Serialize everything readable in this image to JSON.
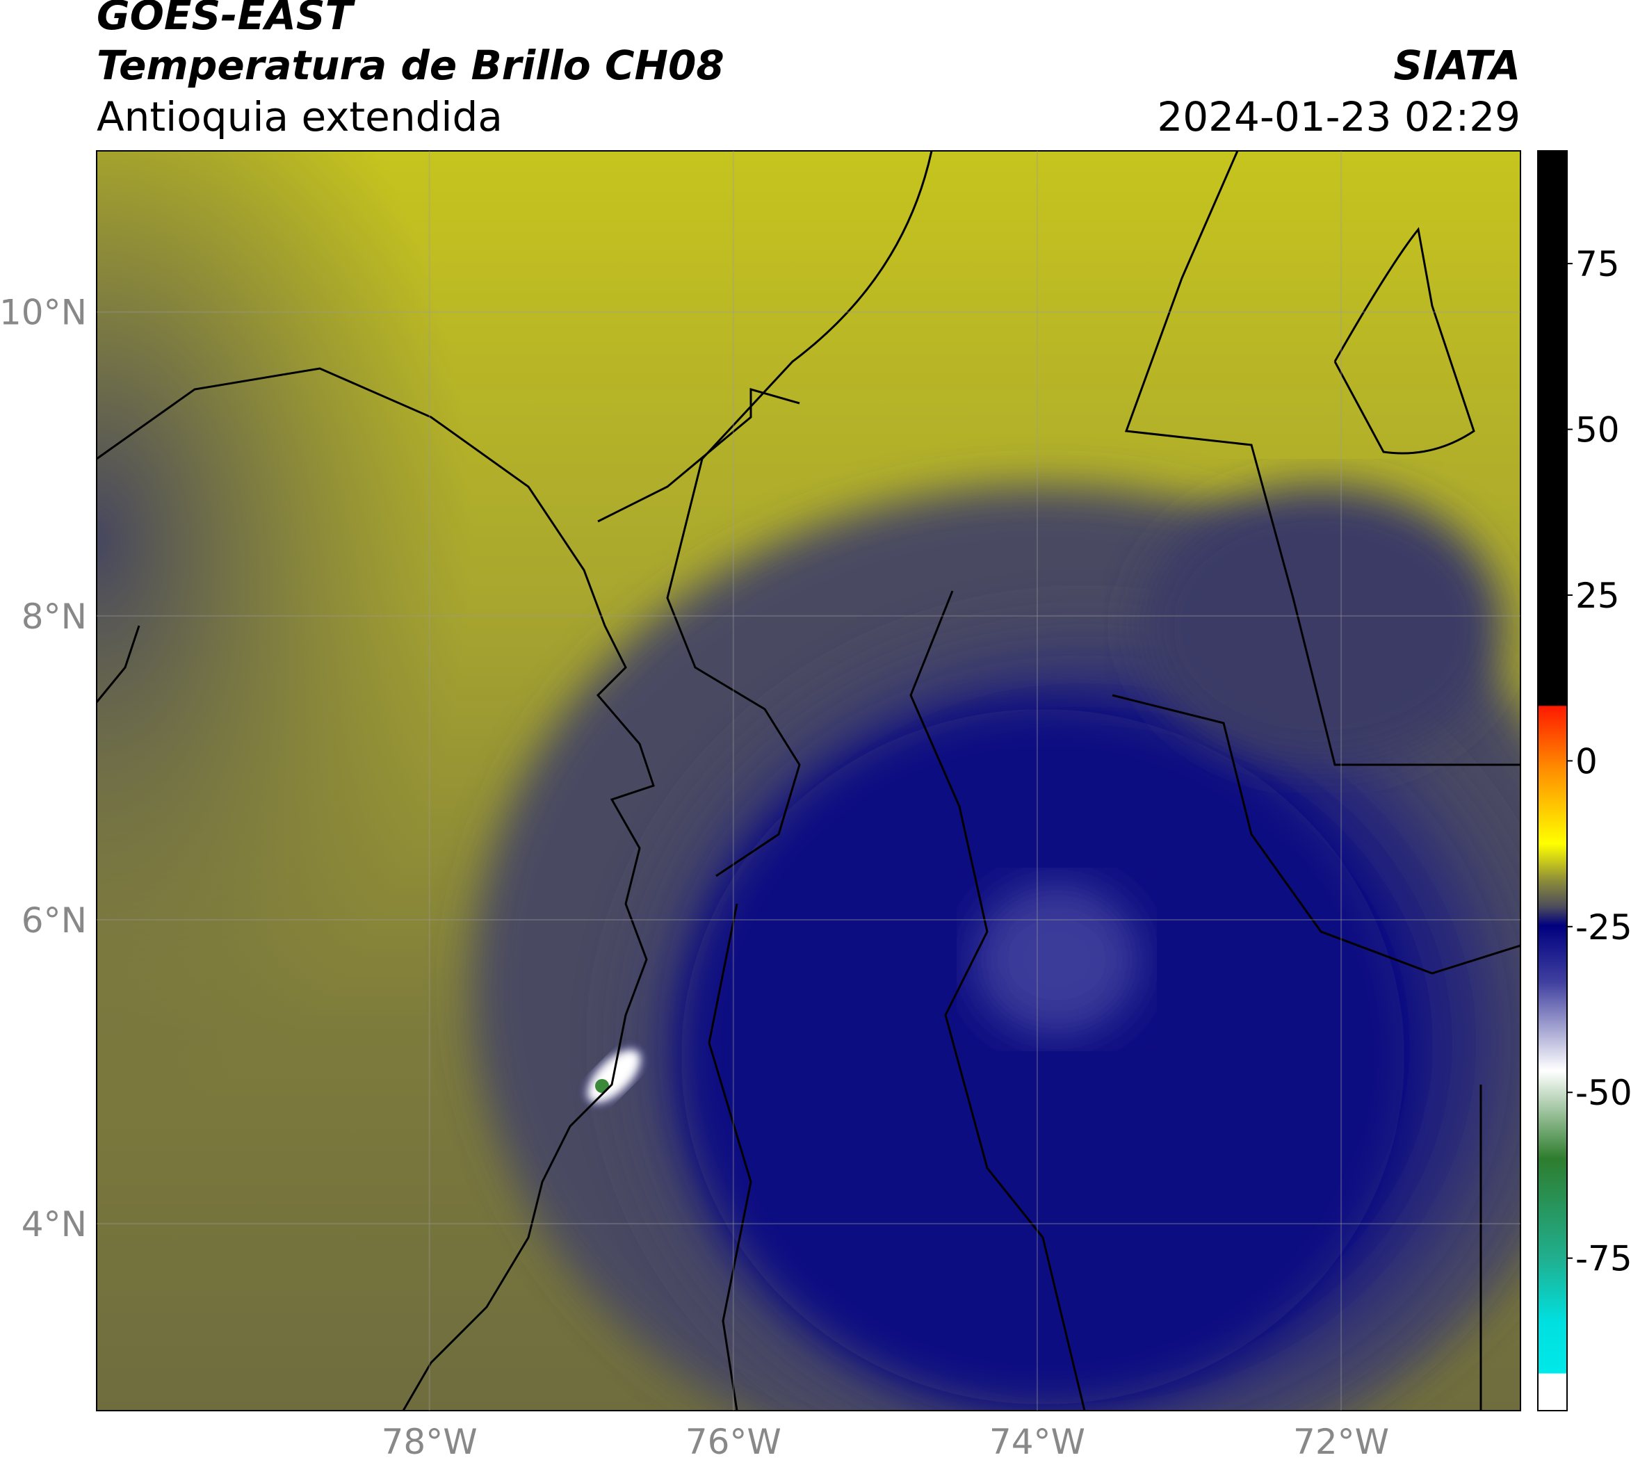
{
  "header": {
    "title": "GOES-EAST",
    "subtitle": "Temperatura de Brillo CH08",
    "region": "Antioquia extendida",
    "source": "SIATA",
    "datetime": "2024-01-23 02:29"
  },
  "map": {
    "xlim": [
      -80.19,
      -70.82
    ],
    "ylim": [
      2.77,
      11.06
    ],
    "xticks": [
      {
        "value": -78,
        "label": "78°W"
      },
      {
        "value": -76,
        "label": "76°W"
      },
      {
        "value": -74,
        "label": "74°W"
      },
      {
        "value": -72,
        "label": "72°W"
      }
    ],
    "yticks": [
      {
        "value": 4,
        "label": "4°N"
      },
      {
        "value": 6,
        "label": "6°N"
      },
      {
        "value": 8,
        "label": "8°N"
      },
      {
        "value": 10,
        "label": "10°N"
      }
    ]
  },
  "colorbar": {
    "lim": [
      -98,
      92
    ],
    "ticks": [
      -75,
      -50,
      -25,
      0,
      25,
      50,
      75
    ]
  }
}
